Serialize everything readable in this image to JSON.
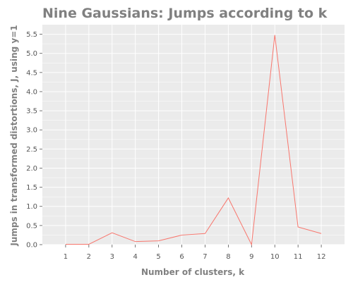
{
  "chart_data": {
    "type": "line",
    "title": "Nine Gaussians: Jumps according to k",
    "xlabel": "Number of clusters, k",
    "ylabel": "Jumps in transformed distortions, J, using y=1",
    "x": [
      1,
      2,
      3,
      4,
      5,
      6,
      7,
      8,
      9,
      10,
      11,
      12
    ],
    "series": [
      {
        "values": [
          0.01,
          0.01,
          0.31,
          0.08,
          0.1,
          0.25,
          0.29,
          1.22,
          0.0,
          5.48,
          0.46,
          0.29
        ]
      }
    ],
    "xlim": [
      0.0,
      13.0
    ],
    "ylim": [
      0.0,
      5.75
    ],
    "xticks": [
      "1",
      "2",
      "3",
      "4",
      "5",
      "6",
      "7",
      "8",
      "9",
      "10",
      "11",
      "12"
    ],
    "yticks": [
      "0.0",
      "0.5",
      "1.0",
      "1.5",
      "2.0",
      "2.5",
      "3.0",
      "3.5",
      "4.0",
      "4.5",
      "5.0",
      "5.5"
    ],
    "grid": true,
    "legend": "none",
    "colors": {
      "line": "#f8766d",
      "panel": "#ebebeb",
      "grid": "#ffffff",
      "text": "#808080"
    }
  }
}
